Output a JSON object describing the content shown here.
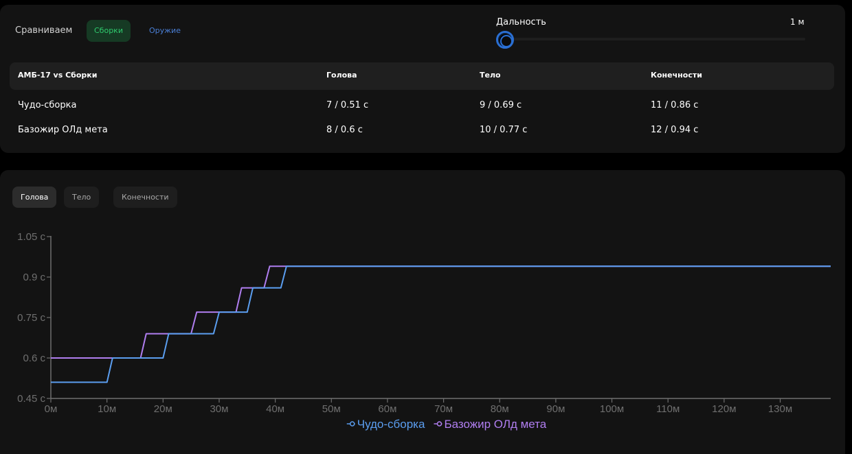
{
  "compare": {
    "label": "Сравниваем",
    "options": [
      "Сборки",
      "Оружие"
    ],
    "active": "Сборки"
  },
  "range": {
    "label": "Дальность",
    "value_label": "1 м",
    "value": 1
  },
  "table": {
    "headers": [
      "АМБ-17 vs Сборки",
      "Голова",
      "Тело",
      "Конечности"
    ],
    "rows": [
      [
        "Чудо-сборка",
        "7 / 0.51 с",
        "9 / 0.69 с",
        "11 / 0.86 с"
      ],
      [
        "Базожир ОЛд мета",
        "8 / 0.6 с",
        "10 / 0.77 с",
        "12 / 0.94 с"
      ]
    ]
  },
  "tabs": {
    "items": [
      "Голова",
      "Тело",
      "Конечности"
    ],
    "active": "Голова"
  },
  "chart_data": {
    "type": "line",
    "title": "",
    "xlabel": "",
    "ylabel": "",
    "xlim": [
      0,
      139
    ],
    "ylim": [
      0.45,
      1.05
    ],
    "x_ticks": [
      0,
      10,
      20,
      30,
      40,
      50,
      60,
      70,
      80,
      90,
      100,
      110,
      120,
      130
    ],
    "x_tick_labels": [
      "0м",
      "10м",
      "20м",
      "30м",
      "40м",
      "50м",
      "60м",
      "70м",
      "80м",
      "90м",
      "100м",
      "110м",
      "120м",
      "130м"
    ],
    "y_ticks": [
      0.45,
      0.6,
      0.75,
      0.9,
      1.05
    ],
    "y_tick_labels": [
      "0.45 с",
      "0.6 с",
      "0.75 с",
      "0.9 с",
      "1.05 с"
    ],
    "grid": false,
    "legend": "bottom-center",
    "series": [
      {
        "name": "Чудо-сборка",
        "color": "#5b9ef0",
        "points": [
          [
            0,
            0.51
          ],
          [
            10,
            0.51
          ],
          [
            11,
            0.6
          ],
          [
            20,
            0.6
          ],
          [
            21,
            0.69
          ],
          [
            29,
            0.69
          ],
          [
            30,
            0.77
          ],
          [
            35,
            0.77
          ],
          [
            36,
            0.86
          ],
          [
            41,
            0.86
          ],
          [
            42,
            0.94
          ],
          [
            139,
            0.94
          ]
        ]
      },
      {
        "name": "Базожир ОЛд мета",
        "color": "#b07ef0",
        "points": [
          [
            0,
            0.6
          ],
          [
            16,
            0.6
          ],
          [
            17,
            0.69
          ],
          [
            25,
            0.69
          ],
          [
            26,
            0.77
          ],
          [
            33,
            0.77
          ],
          [
            34,
            0.86
          ],
          [
            38,
            0.86
          ],
          [
            39,
            0.94
          ],
          [
            139,
            0.94
          ]
        ]
      }
    ]
  },
  "colors": {
    "background": "#000000",
    "panel": "#131313",
    "accent_green": "#2fcb6e",
    "accent_blue": "#2a6fd3",
    "axis": "#6f6f6f"
  }
}
